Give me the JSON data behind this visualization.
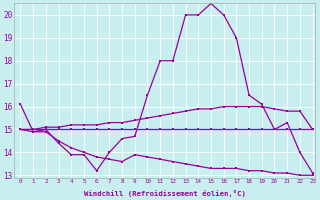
{
  "xlabel": "Windchill (Refroidissement éolien,°C)",
  "background_color": "#c8eef0",
  "line_color": "#990099",
  "grid_color": "#ffffff",
  "x_min": 0,
  "x_max": 23,
  "y_min": 13,
  "y_max": 20.5,
  "yticks": [
    13,
    14,
    15,
    16,
    17,
    18,
    19,
    20
  ],
  "line1": [
    16.1,
    14.9,
    15.0,
    14.4,
    13.9,
    13.9,
    13.2,
    14.0,
    14.6,
    14.7,
    16.5,
    18.0,
    18.0,
    20.0,
    20.0,
    20.5,
    20.0,
    19.0,
    16.5,
    16.1,
    15.0,
    15.3,
    14.0,
    13.1
  ],
  "line2": [
    15.0,
    15.0,
    15.1,
    15.1,
    15.2,
    15.2,
    15.2,
    15.3,
    15.3,
    15.4,
    15.5,
    15.6,
    15.7,
    15.8,
    15.9,
    15.9,
    16.0,
    16.0,
    16.0,
    16.0,
    15.9,
    15.8,
    15.8,
    15.0
  ],
  "line3": [
    15.0,
    15.0,
    15.0,
    15.0,
    15.0,
    15.0,
    15.0,
    15.0,
    15.0,
    15.0,
    15.0,
    15.0,
    15.0,
    15.0,
    15.0,
    15.0,
    15.0,
    15.0,
    15.0,
    15.0,
    15.0,
    15.0,
    15.0,
    15.0
  ],
  "line4": [
    15.0,
    14.9,
    14.9,
    14.5,
    14.2,
    14.0,
    13.8,
    13.7,
    13.6,
    13.9,
    13.8,
    13.7,
    13.6,
    13.5,
    13.4,
    13.3,
    13.3,
    13.3,
    13.2,
    13.2,
    13.1,
    13.1,
    13.0,
    13.0
  ]
}
